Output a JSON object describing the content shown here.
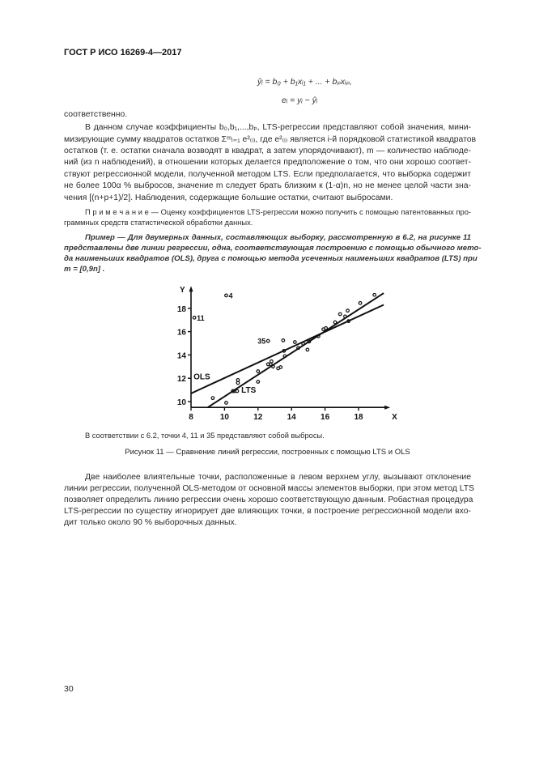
{
  "header": {
    "title": "ГОСТ Р ИСО 16269-4—2017"
  },
  "formulas": [
    "ŷᵢ = b₀ + b₁xᵢ₁ + ... + bₚxᵢₚ,",
    "eᵢ = yᵢ − ŷᵢ"
  ],
  "intro_word": "соответственно.",
  "paragraph1": [
    "В данном случае коэффициенты b₀,b₁,...,bₚ, LTS-регрессии представляют собой значения, мини-",
    "мизирующие сумму квадратов остатков Σᵐᵢ₌₁ e²₍ᵢ₎, где e²₍ᵢ₎ является i-й порядковой статистикой квадратов",
    "остатков (т. е. остатки сначала возводят в квадрат, а затем упорядочивают), m — количество наблюде-",
    "ний (из n наблюдений), в отношении которых делается предположение о том, что они хорошо соответ-",
    "ствуют регрессионной модели, полученной методом LTS. Если предполагается, что выборка содержит",
    "не более 100α % выбросов, значение m следует брать близким к (1-α)n, но не менее целой части зна-",
    "чения [(n+p+1)/2]. Наблюдения, содержащие большие остатки, считают выбросами."
  ],
  "note": [
    "П р и м е ч а н и е — Оценку коэффициентов LTS-регрессии можно получить с помощью патентованных про-",
    "граммных средств статистической обработки данных."
  ],
  "example": [
    "Пример — Для двумерных данных, составляющих выборку, рассмотренную в 6.2, на рисунке 11",
    "представлены две линии регрессии, одна, соответствующая построению с помощью обычного мето-",
    "да наименьших квадратов (OLS), друга с помощью метода усеченных наименьших квадратов (LTS) при",
    "m = [0,9n] ."
  ],
  "chart_data": {
    "type": "scatter",
    "xlabel": "X",
    "ylabel": "Y",
    "xlim": [
      8,
      19.6
    ],
    "ylim": [
      9.5,
      19.5
    ],
    "xticks": [
      "8",
      "10",
      "12",
      "14",
      "16",
      "18"
    ],
    "yticks": [
      "10",
      "12",
      "14",
      "16",
      "18"
    ],
    "grid": false,
    "points": [
      {
        "x": 10.1,
        "y": 19.1,
        "label": "4"
      },
      {
        "x": 8.2,
        "y": 17.2,
        "label": "11"
      },
      {
        "x": 12.6,
        "y": 15.2,
        "label": "35"
      },
      {
        "x": 9.3,
        "y": 10.3
      },
      {
        "x": 10.1,
        "y": 9.9
      },
      {
        "x": 10.5,
        "y": 10.9
      },
      {
        "x": 10.6,
        "y": 10.9
      },
      {
        "x": 10.75,
        "y": 10.9
      },
      {
        "x": 10.8,
        "y": 11.6
      },
      {
        "x": 10.8,
        "y": 11.85
      },
      {
        "x": 12.0,
        "y": 11.7
      },
      {
        "x": 12.0,
        "y": 12.6
      },
      {
        "x": 12.6,
        "y": 13.2
      },
      {
        "x": 12.8,
        "y": 13.45
      },
      {
        "x": 12.9,
        "y": 13.0
      },
      {
        "x": 12.75,
        "y": 13.2
      },
      {
        "x": 13.2,
        "y": 12.85
      },
      {
        "x": 13.35,
        "y": 12.95
      },
      {
        "x": 13.5,
        "y": 15.25
      },
      {
        "x": 13.55,
        "y": 14.35
      },
      {
        "x": 13.6,
        "y": 13.9
      },
      {
        "x": 14.2,
        "y": 15.1
      },
      {
        "x": 14.4,
        "y": 14.6
      },
      {
        "x": 14.7,
        "y": 14.95
      },
      {
        "x": 14.95,
        "y": 14.45
      },
      {
        "x": 15.05,
        "y": 15.15
      },
      {
        "x": 15.6,
        "y": 15.6
      },
      {
        "x": 15.9,
        "y": 16.2
      },
      {
        "x": 16.05,
        "y": 16.3
      },
      {
        "x": 16.6,
        "y": 16.8
      },
      {
        "x": 16.9,
        "y": 17.5
      },
      {
        "x": 17.2,
        "y": 17.3
      },
      {
        "x": 17.35,
        "y": 17.8
      },
      {
        "x": 17.4,
        "y": 16.9
      },
      {
        "x": 18.1,
        "y": 18.45
      },
      {
        "x": 18.95,
        "y": 19.15
      }
    ],
    "lines": [
      {
        "name": "OLS",
        "x": [
          8,
          19.5
        ],
        "y": [
          10.7,
          18.3
        ]
      },
      {
        "name": "LTS",
        "x": [
          9.0,
          19.5
        ],
        "y": [
          9.5,
          19.3
        ]
      }
    ]
  },
  "figure_note": "В соответствии с 6.2, точки 4, 11 и 35 представляют собой выбросы.",
  "figure_caption": "Рисунок 11 — Сравнение линий регрессии, построенных с помощью LTS и OLS",
  "paragraph2": [
    "Две наиболее влиятельные точки, расположенные в левом верхнем углу, вызывают отклонение",
    "линии регрессии, полученной OLS-методом от основной массы элементов выборки, при этом метод LTS",
    "позволяет определить линию регрессии очень хорошо соответствующую данным. Робастная процедура",
    "LTS-регрессии по существу игнорирует две влияющих точки, в построение регрессионной модели вхо-",
    "дит только около 90 % выборочных данных."
  ],
  "page_number": "30"
}
